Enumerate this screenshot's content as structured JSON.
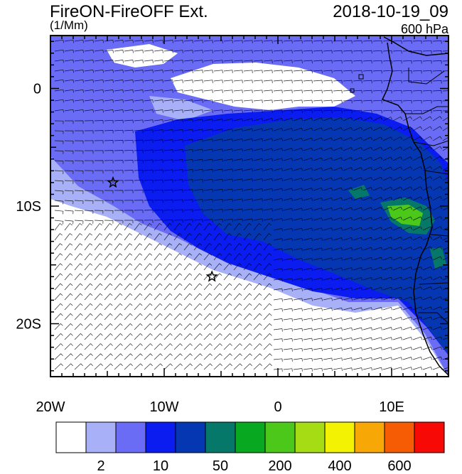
{
  "header": {
    "title_left": "FireON-FireOFF Ext.",
    "units": "(1/Mm)",
    "title_right": "2018-10-19_09",
    "level": "600 hPa"
  },
  "map": {
    "lon_range": [
      -20,
      15
    ],
    "lat_range": [
      -24.5,
      4.5
    ],
    "x_ticks": [
      {
        "value": -20,
        "label": "20W"
      },
      {
        "value": -10,
        "label": "10W"
      },
      {
        "value": 0,
        "label": "0"
      },
      {
        "value": 10,
        "label": "10E"
      }
    ],
    "y_ticks": [
      {
        "value": 0,
        "label": "0"
      },
      {
        "value": -10,
        "label": "10S"
      },
      {
        "value": -20,
        "label": "20S"
      }
    ],
    "stars": [
      {
        "name": "star-west",
        "lon": -14.5,
        "lat": -8
      },
      {
        "name": "star-south",
        "lon": -5.8,
        "lat": -16
      }
    ]
  },
  "colorbar": {
    "colors": [
      "#ffffff",
      "#a8b0f8",
      "#6a6cf6",
      "#0a1cf0",
      "#0537b2",
      "#06786a",
      "#08a820",
      "#4cc81a",
      "#a6dc14",
      "#f2f202",
      "#f7a706",
      "#f65c04",
      "#f70a06"
    ],
    "labels": [
      {
        "index": 1,
        "text": "2"
      },
      {
        "index": 3,
        "text": "10"
      },
      {
        "index": 5,
        "text": "50"
      },
      {
        "index": 7,
        "text": "200"
      },
      {
        "index": 9,
        "text": "400"
      },
      {
        "index": 11,
        "text": "600"
      }
    ]
  }
}
